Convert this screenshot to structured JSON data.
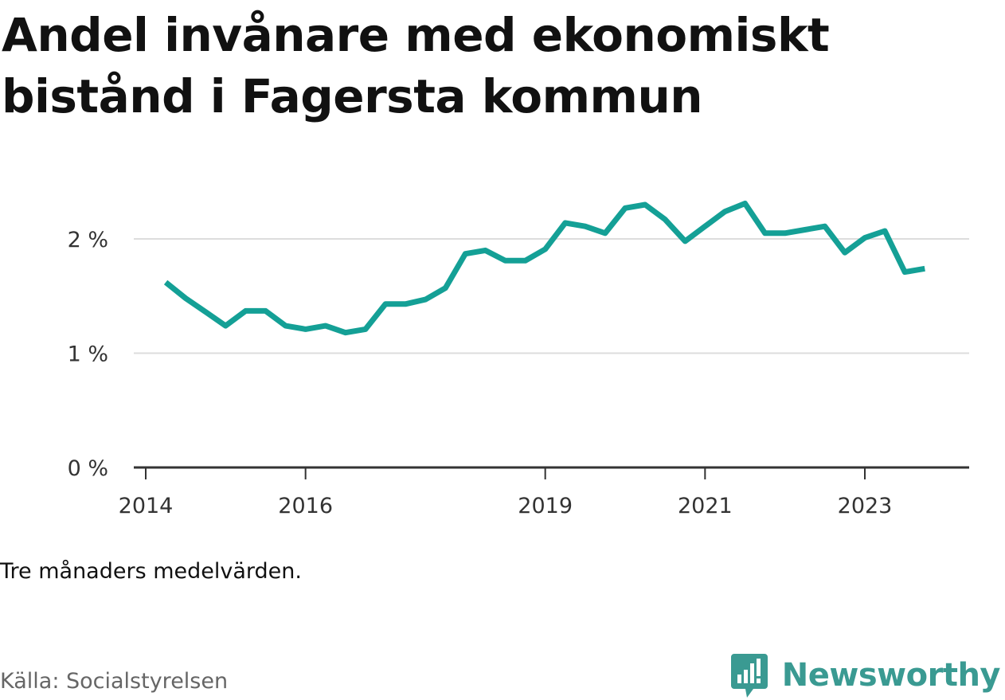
{
  "title": "Andel invånare med ekonomiskt bistånd i Fagersta kommun",
  "note": "Tre månaders medelvärden.",
  "source": "Källa: Socialstyrelsen",
  "brand": {
    "name": "Newsworthy",
    "icon": "newsworthy-logo-icon",
    "color": "#3a9a92"
  },
  "colors": {
    "line": "#14a096",
    "grid": "#dddddd",
    "axis": "#333333"
  },
  "chart_data": {
    "type": "line",
    "title": "Andel invånare med ekonomiskt bistånd i Fagersta kommun",
    "xlabel": "",
    "ylabel": "",
    "ylim": [
      0,
      2.5
    ],
    "y_ticks": [
      {
        "value": 0,
        "label": "0 %"
      },
      {
        "value": 1,
        "label": "1 %"
      },
      {
        "value": 2,
        "label": "2 %"
      }
    ],
    "x_ticks": [
      {
        "value": "2014-01",
        "label": "2014"
      },
      {
        "value": "2016-01",
        "label": "2016"
      },
      {
        "value": "2019-01",
        "label": "2019"
      },
      {
        "value": "2021-01",
        "label": "2021"
      },
      {
        "value": "2023-01",
        "label": "2023"
      }
    ],
    "grid": true,
    "series": [
      {
        "x": [
          "2014-04",
          "2014-07",
          "2014-10",
          "2015-01",
          "2015-04",
          "2015-07",
          "2015-10",
          "2016-01",
          "2016-04",
          "2016-07",
          "2016-10",
          "2017-01",
          "2017-04",
          "2017-07",
          "2017-10",
          "2018-01",
          "2018-04",
          "2018-07",
          "2018-10",
          "2019-01",
          "2019-04",
          "2019-07",
          "2019-10",
          "2020-01",
          "2020-04",
          "2020-07",
          "2020-10",
          "2021-01",
          "2021-04",
          "2021-07",
          "2021-10",
          "2022-01",
          "2022-04",
          "2022-07",
          "2022-10",
          "2023-01",
          "2023-04",
          "2023-07",
          "2023-10"
        ],
        "values": [
          1.62,
          1.48,
          1.36,
          1.24,
          1.37,
          1.37,
          1.24,
          1.21,
          1.24,
          1.18,
          1.21,
          1.43,
          1.43,
          1.47,
          1.57,
          1.87,
          1.9,
          1.81,
          1.81,
          1.91,
          2.14,
          2.11,
          2.05,
          2.27,
          2.3,
          2.17,
          1.98,
          2.11,
          2.24,
          2.31,
          2.05,
          2.05,
          2.08,
          2.11,
          1.88,
          2.01,
          2.07,
          1.71,
          1.74
        ]
      }
    ]
  }
}
